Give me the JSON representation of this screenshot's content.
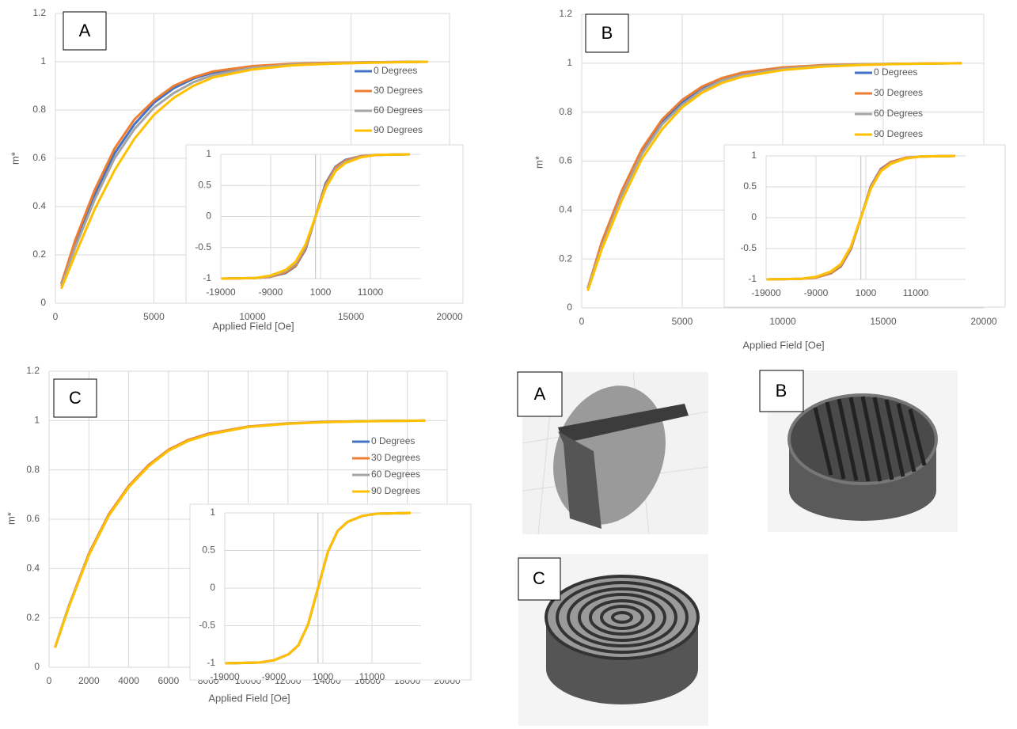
{
  "chart_data": [
    {
      "type": "line",
      "panel_label": "A",
      "xlabel": "Applied Field [Oe]",
      "ylabel": "m*",
      "x": [
        300,
        1000,
        2000,
        3000,
        4000,
        5000,
        6000,
        7000,
        8000,
        10000,
        12000,
        14000,
        16000,
        18900
      ],
      "xlim": [
        0,
        20000
      ],
      "xticks": [
        0,
        5000,
        10000,
        15000,
        20000
      ],
      "ylim": [
        0,
        1.2
      ],
      "yticks": [
        0,
        0.2,
        0.4,
        0.6,
        0.8,
        1,
        1.2
      ],
      "grid": true,
      "legend": "right",
      "series": [
        {
          "name": "0 Degrees",
          "color": "#4472c4",
          "values": [
            0.08,
            0.25,
            0.45,
            0.62,
            0.74,
            0.83,
            0.89,
            0.93,
            0.955,
            0.98,
            0.99,
            0.995,
            0.998,
            1
          ]
        },
        {
          "name": "30 Degrees",
          "color": "#ed7d31",
          "values": [
            0.08,
            0.26,
            0.47,
            0.64,
            0.76,
            0.84,
            0.9,
            0.935,
            0.96,
            0.982,
            0.992,
            0.996,
            0.998,
            1
          ]
        },
        {
          "name": "60 Degrees",
          "color": "#a5a5a5",
          "values": [
            0.07,
            0.23,
            0.43,
            0.6,
            0.72,
            0.81,
            0.87,
            0.915,
            0.945,
            0.975,
            0.988,
            0.994,
            0.997,
            1
          ]
        },
        {
          "name": "90 Degrees",
          "color": "#ffc000",
          "values": [
            0.06,
            0.2,
            0.39,
            0.55,
            0.68,
            0.78,
            0.85,
            0.9,
            0.935,
            0.968,
            0.985,
            0.992,
            0.996,
            1
          ]
        }
      ]
    },
    {
      "type": "line",
      "x": [
        -18900,
        -12000,
        -9000,
        -6000,
        -4000,
        -2000,
        0,
        2000,
        4000,
        6000,
        9000,
        12000,
        18900
      ],
      "xlim": [
        -19000,
        21000
      ],
      "xticks": [
        -19000,
        -9000,
        1000,
        11000
      ],
      "ylim": [
        -1,
        1
      ],
      "yticks": [
        -1,
        -0.5,
        0,
        0.5,
        1
      ],
      "grid": true,
      "series": [
        {
          "color": "#4472c4",
          "values": [
            -1,
            -0.99,
            -0.97,
            -0.91,
            -0.8,
            -0.53,
            0,
            0.53,
            0.8,
            0.91,
            0.97,
            0.99,
            1
          ]
        },
        {
          "color": "#ed7d31",
          "values": [
            -1,
            -0.99,
            -0.97,
            -0.9,
            -0.79,
            -0.51,
            0,
            0.51,
            0.79,
            0.9,
            0.97,
            0.99,
            1
          ]
        },
        {
          "color": "#a5a5a5",
          "values": [
            -1,
            -0.99,
            -0.96,
            -0.88,
            -0.76,
            -0.48,
            0,
            0.48,
            0.76,
            0.88,
            0.96,
            0.99,
            1
          ]
        },
        {
          "color": "#ffc000",
          "values": [
            -1,
            -0.99,
            -0.95,
            -0.86,
            -0.73,
            -0.45,
            0,
            0.45,
            0.73,
            0.86,
            0.95,
            0.99,
            1
          ]
        }
      ]
    },
    {
      "type": "line",
      "panel_label": "B",
      "xlabel": "Applied Field [Oe]",
      "ylabel": "m*",
      "x": [
        300,
        1000,
        2000,
        3000,
        4000,
        5000,
        6000,
        7000,
        8000,
        10000,
        12000,
        14000,
        16000,
        18900
      ],
      "xlim": [
        0,
        20000
      ],
      "xticks": [
        0,
        5000,
        10000,
        15000,
        20000
      ],
      "ylim": [
        0,
        1.2
      ],
      "yticks": [
        0,
        0.2,
        0.4,
        0.6,
        0.8,
        1,
        1.2
      ],
      "grid": true,
      "legend": "right",
      "series": [
        {
          "name": "0 Degrees",
          "color": "#4472c4",
          "values": [
            0.08,
            0.26,
            0.47,
            0.64,
            0.76,
            0.84,
            0.9,
            0.935,
            0.958,
            0.98,
            0.99,
            0.995,
            0.998,
            1
          ]
        },
        {
          "name": "30 Degrees",
          "color": "#ed7d31",
          "values": [
            0.08,
            0.27,
            0.48,
            0.65,
            0.77,
            0.85,
            0.905,
            0.94,
            0.962,
            0.983,
            0.992,
            0.996,
            0.998,
            1
          ]
        },
        {
          "name": "60 Degrees",
          "color": "#a5a5a5",
          "values": [
            0.08,
            0.25,
            0.46,
            0.63,
            0.75,
            0.83,
            0.89,
            0.93,
            0.952,
            0.977,
            0.989,
            0.995,
            0.997,
            1
          ]
        },
        {
          "name": "90 Degrees",
          "color": "#ffc000",
          "values": [
            0.07,
            0.24,
            0.44,
            0.61,
            0.73,
            0.82,
            0.88,
            0.92,
            0.945,
            0.972,
            0.986,
            0.993,
            0.997,
            1
          ]
        }
      ]
    },
    {
      "type": "line",
      "x": [
        -18900,
        -12000,
        -9000,
        -6000,
        -4000,
        -2000,
        0,
        2000,
        4000,
        6000,
        9000,
        12000,
        18900
      ],
      "xlim": [
        -19000,
        21000
      ],
      "xticks": [
        -19000,
        -9000,
        1000,
        11000
      ],
      "ylim": [
        -1,
        1
      ],
      "yticks": [
        -1,
        -0.5,
        0,
        0.5,
        1
      ],
      "grid": true,
      "series": [
        {
          "color": "#4472c4",
          "values": [
            -1,
            -0.99,
            -0.97,
            -0.9,
            -0.79,
            -0.51,
            0,
            0.51,
            0.79,
            0.9,
            0.97,
            0.99,
            1
          ]
        },
        {
          "color": "#ed7d31",
          "values": [
            -1,
            -0.99,
            -0.97,
            -0.9,
            -0.78,
            -0.5,
            0,
            0.5,
            0.78,
            0.9,
            0.97,
            0.99,
            1
          ]
        },
        {
          "color": "#a5a5a5",
          "values": [
            -1,
            -0.99,
            -0.96,
            -0.88,
            -0.76,
            -0.48,
            0,
            0.48,
            0.76,
            0.88,
            0.96,
            0.99,
            1
          ]
        },
        {
          "color": "#ffc000",
          "values": [
            -1,
            -0.99,
            -0.96,
            -0.87,
            -0.75,
            -0.47,
            0,
            0.47,
            0.75,
            0.87,
            0.96,
            0.99,
            1
          ]
        }
      ]
    },
    {
      "type": "line",
      "panel_label": "C",
      "xlabel": "Applied Field [Oe]",
      "ylabel": "m*",
      "x": [
        300,
        1000,
        2000,
        3000,
        4000,
        5000,
        6000,
        7000,
        8000,
        10000,
        12000,
        14000,
        16000,
        18900
      ],
      "xlim": [
        0,
        20000
      ],
      "xticks": [
        0,
        2000,
        4000,
        6000,
        8000,
        10000,
        12000,
        14000,
        16000,
        18000,
        20000
      ],
      "ylim": [
        0,
        1.2
      ],
      "yticks": [
        0,
        0.2,
        0.4,
        0.6,
        0.8,
        1,
        1.2
      ],
      "grid": true,
      "legend": "right",
      "series": [
        {
          "name": "0 Degrees",
          "color": "#4472c4",
          "values": [
            0.08,
            0.25,
            0.46,
            0.62,
            0.73,
            0.82,
            0.88,
            0.92,
            0.945,
            0.975,
            0.988,
            0.995,
            0.998,
            1
          ]
        },
        {
          "name": "30 Degrees",
          "color": "#ed7d31",
          "values": [
            0.08,
            0.25,
            0.46,
            0.62,
            0.735,
            0.82,
            0.882,
            0.922,
            0.947,
            0.976,
            0.989,
            0.995,
            0.998,
            1
          ]
        },
        {
          "name": "60 Degrees",
          "color": "#a5a5a5",
          "values": [
            0.08,
            0.25,
            0.455,
            0.615,
            0.73,
            0.815,
            0.878,
            0.918,
            0.944,
            0.974,
            0.988,
            0.994,
            0.998,
            1
          ]
        },
        {
          "name": "90 Degrees",
          "color": "#ffc000",
          "values": [
            0.08,
            0.245,
            0.455,
            0.615,
            0.73,
            0.815,
            0.878,
            0.918,
            0.943,
            0.974,
            0.987,
            0.994,
            0.997,
            1
          ]
        }
      ]
    },
    {
      "type": "line",
      "x": [
        -18900,
        -12000,
        -9000,
        -6000,
        -4000,
        -2000,
        0,
        2000,
        4000,
        6000,
        9000,
        12000,
        18900
      ],
      "xlim": [
        -19000,
        21000
      ],
      "xticks": [
        -19000,
        -9000,
        1000,
        11000
      ],
      "ylim": [
        -1,
        1
      ],
      "yticks": [
        -1,
        -0.5,
        0,
        0.5,
        1
      ],
      "grid": true,
      "series": [
        {
          "color": "#4472c4",
          "values": [
            -1,
            -0.99,
            -0.96,
            -0.88,
            -0.76,
            -0.48,
            0,
            0.48,
            0.76,
            0.88,
            0.96,
            0.99,
            1
          ]
        },
        {
          "color": "#ed7d31",
          "values": [
            -1,
            -0.99,
            -0.96,
            -0.88,
            -0.76,
            -0.48,
            0,
            0.48,
            0.76,
            0.88,
            0.96,
            0.99,
            1
          ]
        },
        {
          "color": "#a5a5a5",
          "values": [
            -1,
            -0.99,
            -0.96,
            -0.88,
            -0.76,
            -0.48,
            0,
            0.48,
            0.76,
            0.88,
            0.96,
            0.99,
            1
          ]
        },
        {
          "color": "#ffc000",
          "values": [
            -1,
            -0.99,
            -0.96,
            -0.88,
            -0.76,
            -0.48,
            0,
            0.48,
            0.76,
            0.88,
            0.96,
            0.99,
            1
          ]
        }
      ]
    }
  ],
  "images": [
    {
      "label": "A"
    },
    {
      "label": "B"
    },
    {
      "label": "C"
    }
  ]
}
